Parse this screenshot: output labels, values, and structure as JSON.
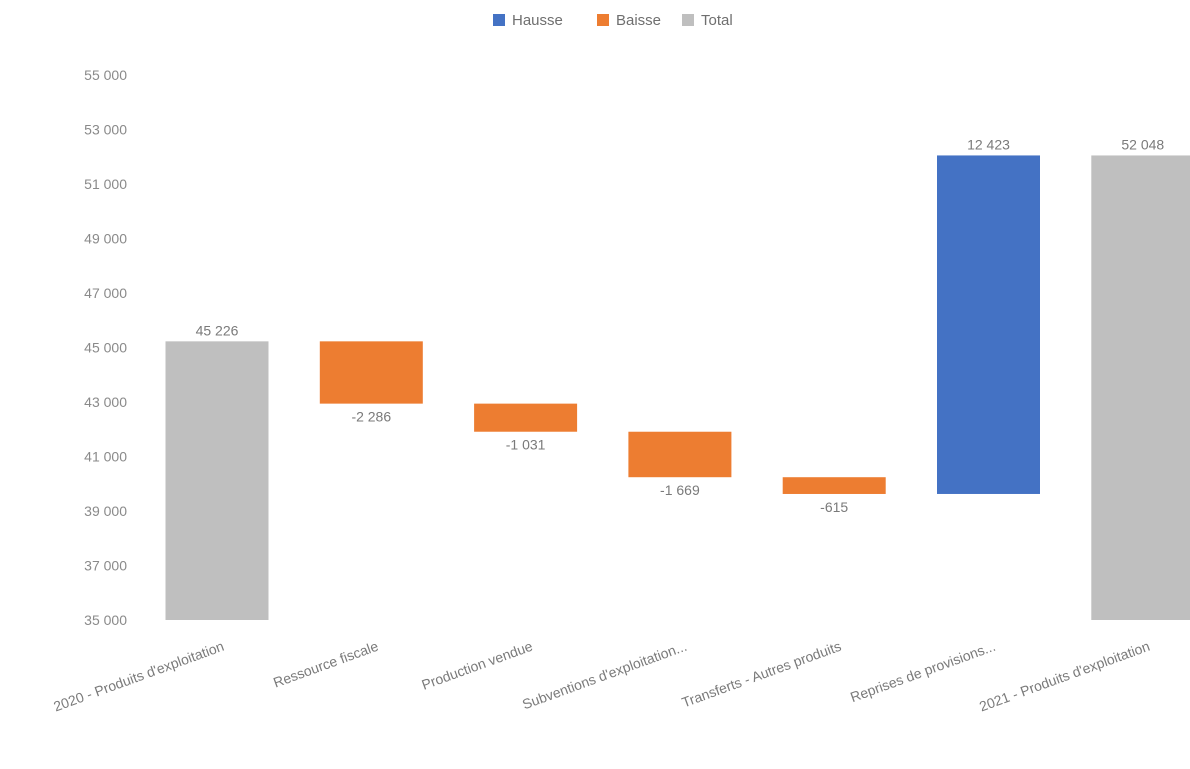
{
  "chart_data": {
    "type": "waterfall",
    "title": "",
    "xlabel": "",
    "ylabel": "",
    "ylim": [
      35000,
      55000
    ],
    "yticks": [
      35000,
      37000,
      39000,
      41000,
      43000,
      45000,
      47000,
      49000,
      51000,
      53000,
      55000
    ],
    "ytick_labels": [
      "35 000",
      "37 000",
      "39 000",
      "41 000",
      "43 000",
      "45 000",
      "47 000",
      "49 000",
      "51 000",
      "53 000",
      "55 000"
    ],
    "grid": false,
    "legend_position": "top-center",
    "legend": [
      {
        "key": "increase",
        "label": "Hausse",
        "color": "#4472c4"
      },
      {
        "key": "decrease",
        "label": "Baisse",
        "color": "#ed7d31"
      },
      {
        "key": "total",
        "label": "Total",
        "color": "#bfbfbf"
      }
    ],
    "categories": [
      "2020 - Produits d'exploitation",
      "Ressource fiscale",
      "Production vendue",
      "Subventions d'exploitation...",
      "Transferts - Autres produits",
      "Reprises de provisions...",
      "2021 - Produits d'exploitation"
    ],
    "steps": [
      {
        "kind": "total",
        "value": 45226,
        "label": "45 226"
      },
      {
        "kind": "decrease",
        "value": -2286,
        "label": "-2 286"
      },
      {
        "kind": "decrease",
        "value": -1031,
        "label": "-1 031"
      },
      {
        "kind": "decrease",
        "value": -1669,
        "label": "-1 669"
      },
      {
        "kind": "decrease",
        "value": -615,
        "label": "-615"
      },
      {
        "kind": "increase",
        "value": 12423,
        "label": "12 423"
      },
      {
        "kind": "total",
        "value": 52048,
        "label": "52 048"
      }
    ]
  }
}
